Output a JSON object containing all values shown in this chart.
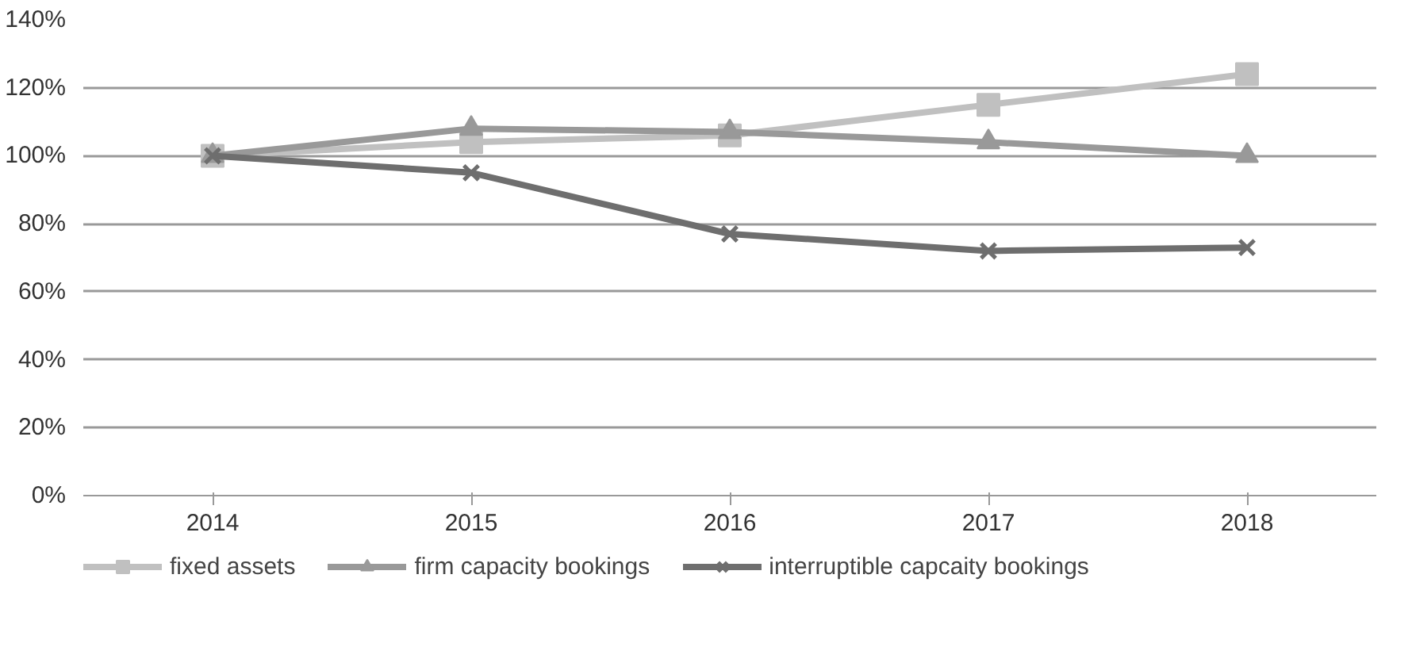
{
  "chart_data": {
    "type": "line",
    "categories": [
      "2014",
      "2015",
      "2016",
      "2017",
      "2018"
    ],
    "series": [
      {
        "name": "fixed assets",
        "color": "#c0c0c0",
        "marker": "square",
        "values": [
          100,
          104,
          106,
          115,
          124
        ]
      },
      {
        "name": "firm capacity bookings",
        "color": "#999999",
        "marker": "triangle",
        "values": [
          100,
          108,
          107,
          104,
          100
        ]
      },
      {
        "name": "interruptible capcaity bookings",
        "color": "#6e6e6e",
        "marker": "cross",
        "values": [
          100,
          95,
          77,
          72,
          73
        ]
      }
    ],
    "ylim": [
      0,
      140
    ],
    "yticks": [
      {
        "value": 0,
        "label": "0%"
      },
      {
        "value": 20,
        "label": "20%"
      },
      {
        "value": 40,
        "label": "40%"
      },
      {
        "value": 60,
        "label": "60%"
      },
      {
        "value": 80,
        "label": "80%"
      },
      {
        "value": 100,
        "label": "100%"
      },
      {
        "value": 120,
        "label": "120%"
      },
      {
        "value": 140,
        "label": "140%"
      }
    ],
    "grid": "y",
    "legend": "bottom",
    "line_style": "solid"
  }
}
